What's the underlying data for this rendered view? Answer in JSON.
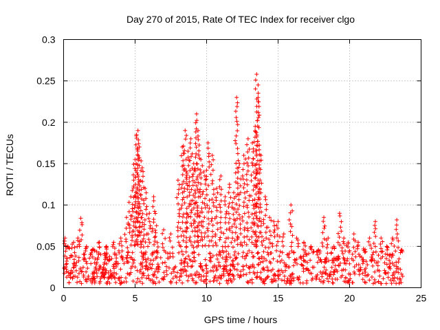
{
  "chart_data": {
    "type": "scatter",
    "title": "Day 270 of 2015, Rate Of TEC Index for receiver clgo",
    "xlabel": "GPS time / hours",
    "ylabel": "ROTI / TECUs",
    "xlim": [
      0,
      25
    ],
    "ylim": [
      0,
      0.3
    ],
    "x_ticks": [
      0,
      5,
      10,
      15,
      20,
      25
    ],
    "y_ticks": [
      0,
      0.05,
      0.1,
      0.15,
      0.2,
      0.25,
      0.3
    ],
    "x_tick_labels": [
      "0",
      "5",
      "10",
      "15",
      "20",
      "25"
    ],
    "y_tick_labels": [
      "0",
      "0.05",
      "0.1",
      "0.15",
      "0.2",
      "0.25",
      "0.3"
    ],
    "grid": true,
    "legend": "none",
    "marker": "plus",
    "series_color": "#ff0000",
    "x": [
      0.1,
      0.3,
      0.7,
      1.0,
      1.2,
      1.6,
      2.0,
      2.5,
      3.0,
      3.5,
      4.0,
      4.4,
      4.7,
      4.9,
      5.0,
      5.1,
      5.2,
      5.3,
      5.5,
      5.7,
      6.0,
      6.3,
      6.5,
      7.0,
      7.5,
      8.0,
      8.3,
      8.5,
      8.7,
      8.9,
      9.1,
      9.3,
      9.4,
      9.6,
      9.8,
      10.1,
      10.4,
      10.7,
      11.0,
      11.3,
      11.6,
      11.9,
      12.1,
      12.3,
      12.6,
      12.9,
      13.2,
      13.4,
      13.5,
      13.6,
      13.8,
      14.1,
      14.4,
      14.7,
      15.0,
      15.4,
      15.9,
      16.3,
      16.8,
      17.3,
      17.8,
      18.2,
      18.5,
      18.9,
      19.3,
      19.6,
      19.9,
      20.3,
      20.6,
      21.0,
      21.4,
      21.8,
      22.2,
      22.6,
      23.0,
      23.3,
      23.6
    ],
    "y": [
      0.06,
      0.05,
      0.055,
      0.06,
      0.084,
      0.05,
      0.045,
      0.055,
      0.05,
      0.055,
      0.06,
      0.085,
      0.11,
      0.13,
      0.155,
      0.185,
      0.19,
      0.17,
      0.145,
      0.12,
      0.09,
      0.11,
      0.075,
      0.07,
      0.065,
      0.13,
      0.17,
      0.19,
      0.165,
      0.18,
      0.15,
      0.21,
      0.19,
      0.155,
      0.14,
      0.175,
      0.16,
      0.12,
      0.135,
      0.11,
      0.125,
      0.115,
      0.23,
      0.15,
      0.16,
      0.18,
      0.175,
      0.195,
      0.258,
      0.23,
      0.16,
      0.11,
      0.085,
      0.08,
      0.08,
      0.065,
      0.1,
      0.06,
      0.055,
      0.05,
      0.045,
      0.085,
      0.06,
      0.05,
      0.09,
      0.06,
      0.055,
      0.065,
      0.055,
      0.045,
      0.06,
      0.08,
      0.06,
      0.05,
      0.06,
      0.082,
      0.045
    ],
    "baseline_band": [
      0.005,
      0.045
    ]
  }
}
